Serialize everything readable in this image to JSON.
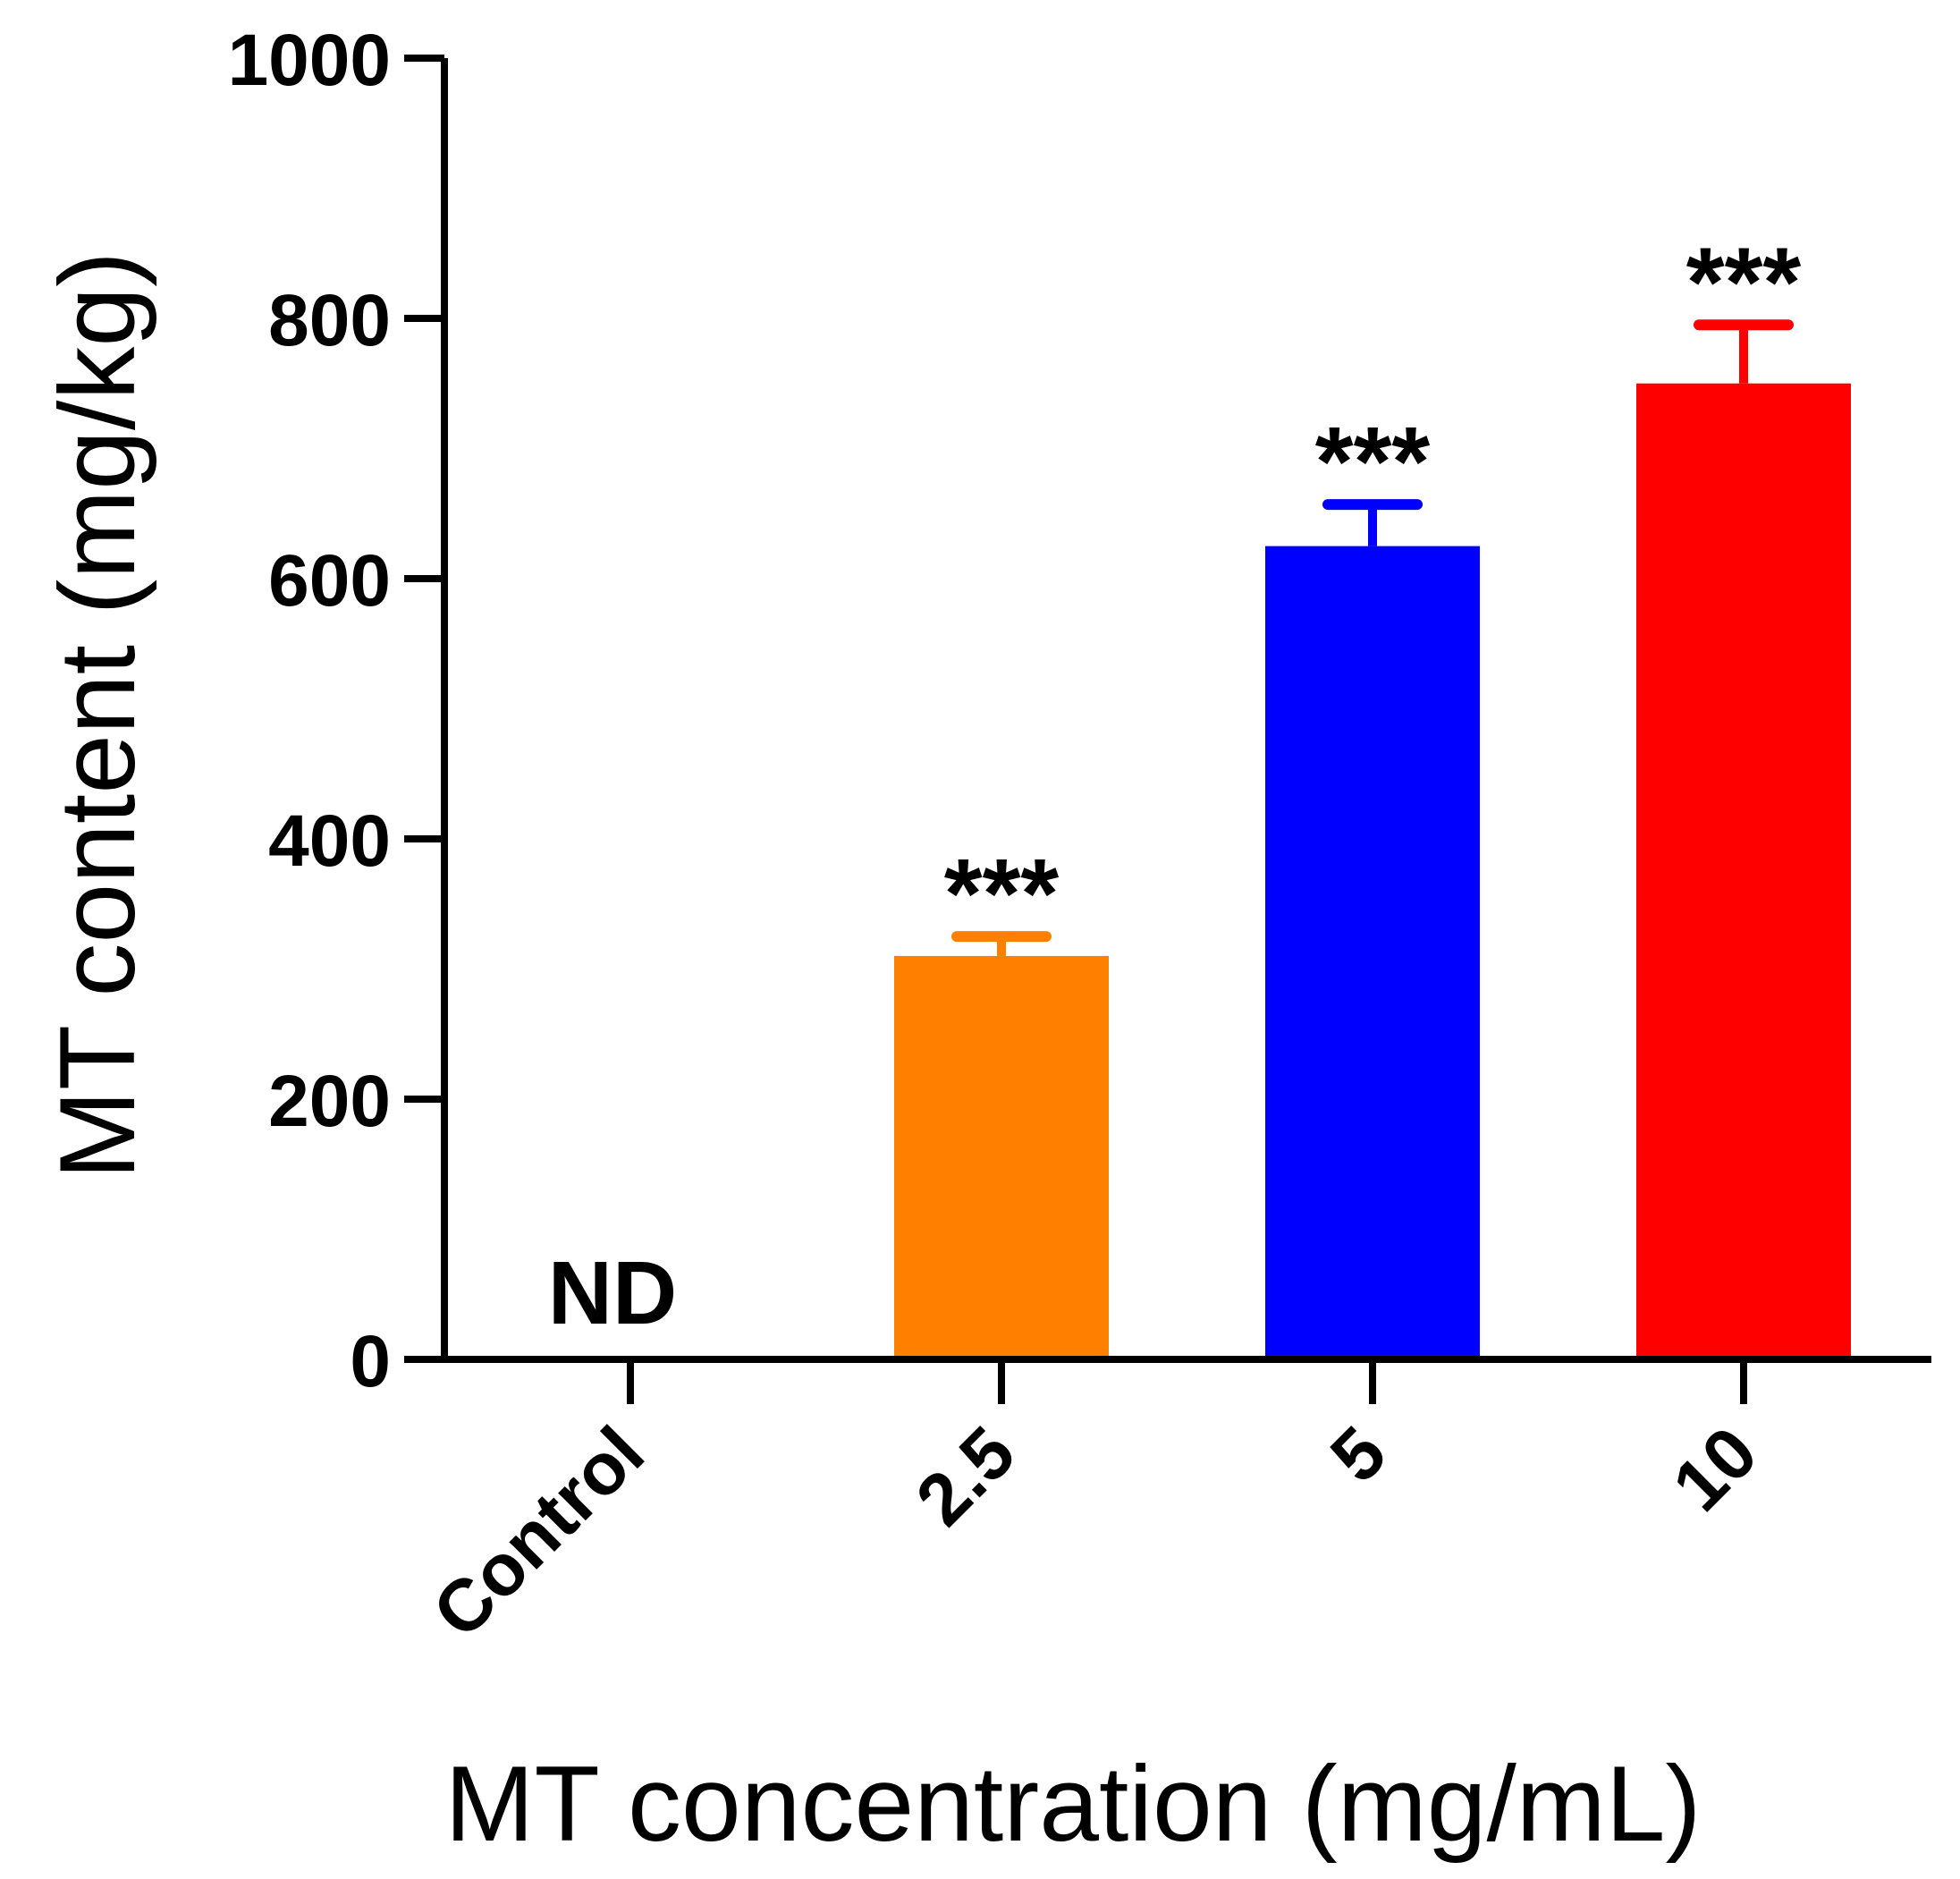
{
  "chart_data": {
    "type": "bar",
    "title": "",
    "xlabel": "MT  concentration (mg/mL)",
    "ylabel": "MT content  (mg/kg)",
    "ylim": [
      0,
      1000
    ],
    "yticks": [
      0,
      200,
      400,
      600,
      800,
      1000
    ],
    "categories": [
      "Control",
      "2.5",
      "5",
      "10"
    ],
    "values": [
      null,
      310,
      625,
      750
    ],
    "errors": [
      null,
      15,
      32,
      45
    ],
    "colors": [
      "#000000",
      "#FF8000",
      "#0000FF",
      "#FF0000"
    ],
    "bar_labels": [
      "ND",
      "",
      "",
      ""
    ],
    "significance": [
      "",
      "***",
      "***",
      "***"
    ],
    "grid": false
  }
}
